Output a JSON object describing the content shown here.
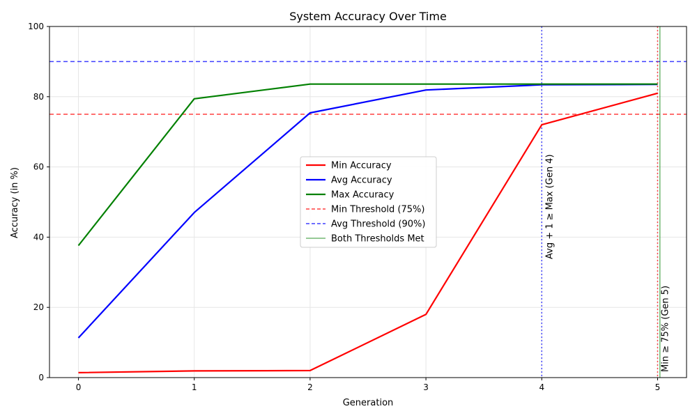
{
  "chart_data": {
    "type": "line",
    "title": "System Accuracy Over Time",
    "xlabel": "Generation",
    "ylabel": "Accuracy (in %)",
    "x": [
      0,
      1,
      2,
      3,
      4,
      5
    ],
    "xlim": [
      -0.25,
      5.25
    ],
    "ylim": [
      0,
      100
    ],
    "x_ticks": [
      "0",
      "1",
      "2",
      "3",
      "4",
      "5"
    ],
    "y_ticks": [
      "0",
      "20",
      "40",
      "60",
      "80",
      "100"
    ],
    "grid": true,
    "legend_position": "center",
    "series": [
      {
        "name": "Min Accuracy",
        "color": "#ff0000",
        "style": "solid",
        "values": [
          1.4,
          1.9,
          2.0,
          18.0,
          72.0,
          81.0
        ]
      },
      {
        "name": "Avg Accuracy",
        "color": "#0000ff",
        "style": "solid",
        "values": [
          11.3,
          47.0,
          75.4,
          81.9,
          83.4,
          83.5
        ]
      },
      {
        "name": "Max Accuracy",
        "color": "#008000",
        "style": "solid",
        "values": [
          37.6,
          79.4,
          83.6,
          83.6,
          83.6,
          83.6
        ]
      }
    ],
    "thresholds": [
      {
        "name": "Min Threshold (75%)",
        "color": "#ff0000",
        "y": 75
      },
      {
        "name": "Avg Threshold (90%)",
        "color": "#0000ff",
        "y": 90
      }
    ],
    "vertical_markers": [
      {
        "x": 4,
        "color": "#0000ff",
        "style": "dotted",
        "label": "Avg + 1 ≥ Max (Gen 4)"
      },
      {
        "x": 5,
        "color": "#ff0000",
        "style": "dotted",
        "label": "Min ≥ 75% (Gen 5)"
      },
      {
        "x": 5.02,
        "color": "#008000",
        "style": "solid",
        "label": ""
      }
    ],
    "legend": [
      {
        "label": "Min Accuracy",
        "color": "#ff0000",
        "style": "solid"
      },
      {
        "label": "Avg Accuracy",
        "color": "#0000ff",
        "style": "solid"
      },
      {
        "label": "Max Accuracy",
        "color": "#008000",
        "style": "solid"
      },
      {
        "label": "Min Threshold (75%)",
        "color": "#ff0000",
        "style": "dashed"
      },
      {
        "label": "Avg Threshold (90%)",
        "color": "#0000ff",
        "style": "dashed"
      },
      {
        "label": "Both Thresholds Met",
        "color": "#008000",
        "style": "thin"
      }
    ]
  }
}
